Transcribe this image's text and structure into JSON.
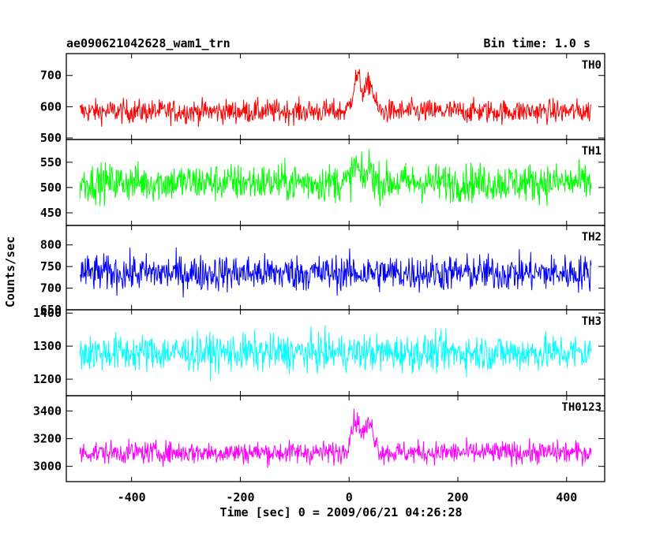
{
  "chart_data": {
    "type": "line",
    "title": "ae090621042628_wam1_trn",
    "bin_time": "Bin time: 1.0 s",
    "ylabel": "Counts/sec",
    "xlabel": "Time [sec] 0 = 2009/06/21 04:26:28",
    "xlim": [
      -520,
      470
    ],
    "x_ticks": [
      -400,
      -200,
      0,
      200,
      400
    ],
    "grid": false,
    "panels": [
      {
        "name": "TH0",
        "color": "#ff0000",
        "ylim": [
          495,
          770
        ],
        "y_ticks": [
          500,
          600,
          700
        ],
        "baseline": 585,
        "noise": 27,
        "bursts": [
          {
            "x": 15,
            "amp": 110,
            "width": 11
          },
          {
            "x": 38,
            "amp": 90,
            "width": 10
          }
        ]
      },
      {
        "name": "TH1",
        "color": "#00ff00",
        "ylim": [
          425,
          595
        ],
        "y_ticks": [
          450,
          500,
          550
        ],
        "baseline": 510,
        "noise": 27,
        "bursts": [
          {
            "x": 12,
            "amp": 35,
            "width": 8
          },
          {
            "x": 38,
            "amp": 30,
            "width": 8
          }
        ]
      },
      {
        "name": "TH2",
        "color": "#0000ff",
        "ylim": [
          650,
          845
        ],
        "y_ticks": [
          650,
          700,
          750,
          800
        ],
        "baseline": 735,
        "noise": 30,
        "bursts": []
      },
      {
        "name": "TH3",
        "color": "#00ffff",
        "ylim": [
          1150,
          1410
        ],
        "y_ticks": [
          1200,
          1300,
          1400
        ],
        "baseline": 1280,
        "noise": 40,
        "bursts": []
      },
      {
        "name": "TH0123",
        "color": "#ff00ff",
        "ylim": [
          2890,
          3510
        ],
        "y_ticks": [
          3000,
          3200,
          3400
        ],
        "baseline": 3100,
        "noise": 58,
        "bursts": [
          {
            "x": 12,
            "amp": 230,
            "width": 13
          },
          {
            "x": 38,
            "amp": 200,
            "width": 12
          }
        ]
      }
    ]
  }
}
